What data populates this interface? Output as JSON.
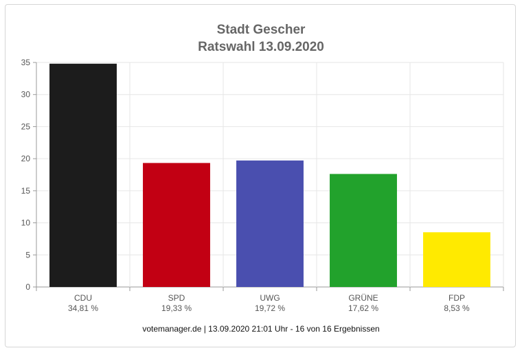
{
  "title": "Stadt Gescher",
  "subtitle": "Ratswahl 13.09.2020",
  "footer": "votemanager.de | 13.09.2020 21:01 Uhr - 16 von 16 Ergebnissen",
  "chart_data": {
    "type": "bar",
    "title": "Stadt Gescher",
    "subtitle": "Ratswahl 13.09.2020",
    "categories": [
      "CDU",
      "SPD",
      "UWG",
      "GRÜNE",
      "FDP"
    ],
    "values": [
      34.81,
      19.33,
      19.72,
      17.62,
      8.53
    ],
    "value_labels": [
      "34,81 %",
      "19,33 %",
      "19,72 %",
      "17,62 %",
      "8,53 %"
    ],
    "colors": [
      "#1c1c1c",
      "#c20013",
      "#4a4faf",
      "#22a22c",
      "#ffea00"
    ],
    "ylim": [
      0,
      35
    ],
    "yticks": [
      0,
      5,
      10,
      15,
      20,
      25,
      30,
      35
    ],
    "grid": true
  }
}
